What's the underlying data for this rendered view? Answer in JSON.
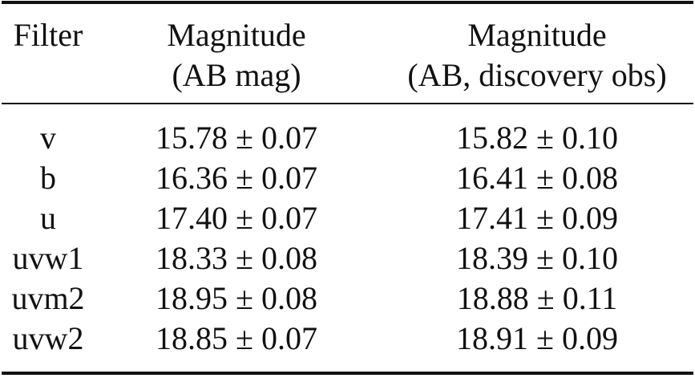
{
  "table": {
    "header": [
      [
        "Filter"
      ],
      [
        "Magnitude",
        "(AB mag)"
      ],
      [
        "Magnitude",
        "(AB, discovery obs)"
      ]
    ],
    "rows": [
      [
        "v",
        "15.78 ± 0.07",
        "15.82 ± 0.10"
      ],
      [
        "b",
        "16.36 ± 0.07",
        "16.41 ± 0.08"
      ],
      [
        "u",
        "17.40 ± 0.07",
        "17.41 ± 0.09"
      ],
      [
        "uvw1",
        "18.33 ± 0.08",
        "18.39 ± 0.10"
      ],
      [
        "uvm2",
        "18.95 ± 0.08",
        "18.88 ± 0.11"
      ],
      [
        "uvw2",
        "18.85 ± 0.07",
        "18.91 ± 0.09"
      ]
    ]
  }
}
